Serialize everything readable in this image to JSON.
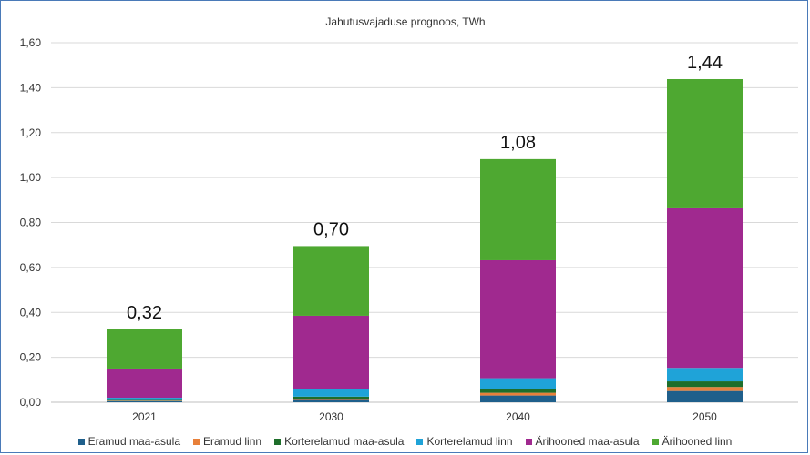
{
  "chart_data": {
    "type": "bar",
    "stacked": true,
    "title": "Jahutusvajaduse prognoos, TWh",
    "xlabel": "",
    "ylabel": "",
    "categories": [
      "2021",
      "2030",
      "2040",
      "2050"
    ],
    "ylim": [
      0,
      1.6
    ],
    "yticks": [
      "0,00",
      "0,20",
      "0,40",
      "0,60",
      "0,80",
      "1,00",
      "1,20",
      "1,40",
      "1,60"
    ],
    "grid": true,
    "legend_position": "bottom",
    "totals": [
      "0,32",
      "0,70",
      "1,08",
      "1,44"
    ],
    "series": [
      {
        "name": "Eramud maa-asula",
        "color": "#1f5f8b",
        "values": [
          0.005,
          0.01,
          0.03,
          0.05
        ]
      },
      {
        "name": "Eramud linn",
        "color": "#e8803a",
        "values": [
          0.002,
          0.005,
          0.012,
          0.018
        ]
      },
      {
        "name": "Korterelamud maa-asula",
        "color": "#1e6e2a",
        "values": [
          0.003,
          0.01,
          0.015,
          0.025
        ]
      },
      {
        "name": "Korterelamud linn",
        "color": "#1fa3d8",
        "values": [
          0.01,
          0.035,
          0.05,
          0.06
        ]
      },
      {
        "name": "Ärihooned maa-asula",
        "color": "#a0298f",
        "values": [
          0.13,
          0.325,
          0.525,
          0.71
        ]
      },
      {
        "name": "Ärihooned linn",
        "color": "#4ea831",
        "values": [
          0.175,
          0.31,
          0.45,
          0.575
        ]
      }
    ]
  }
}
